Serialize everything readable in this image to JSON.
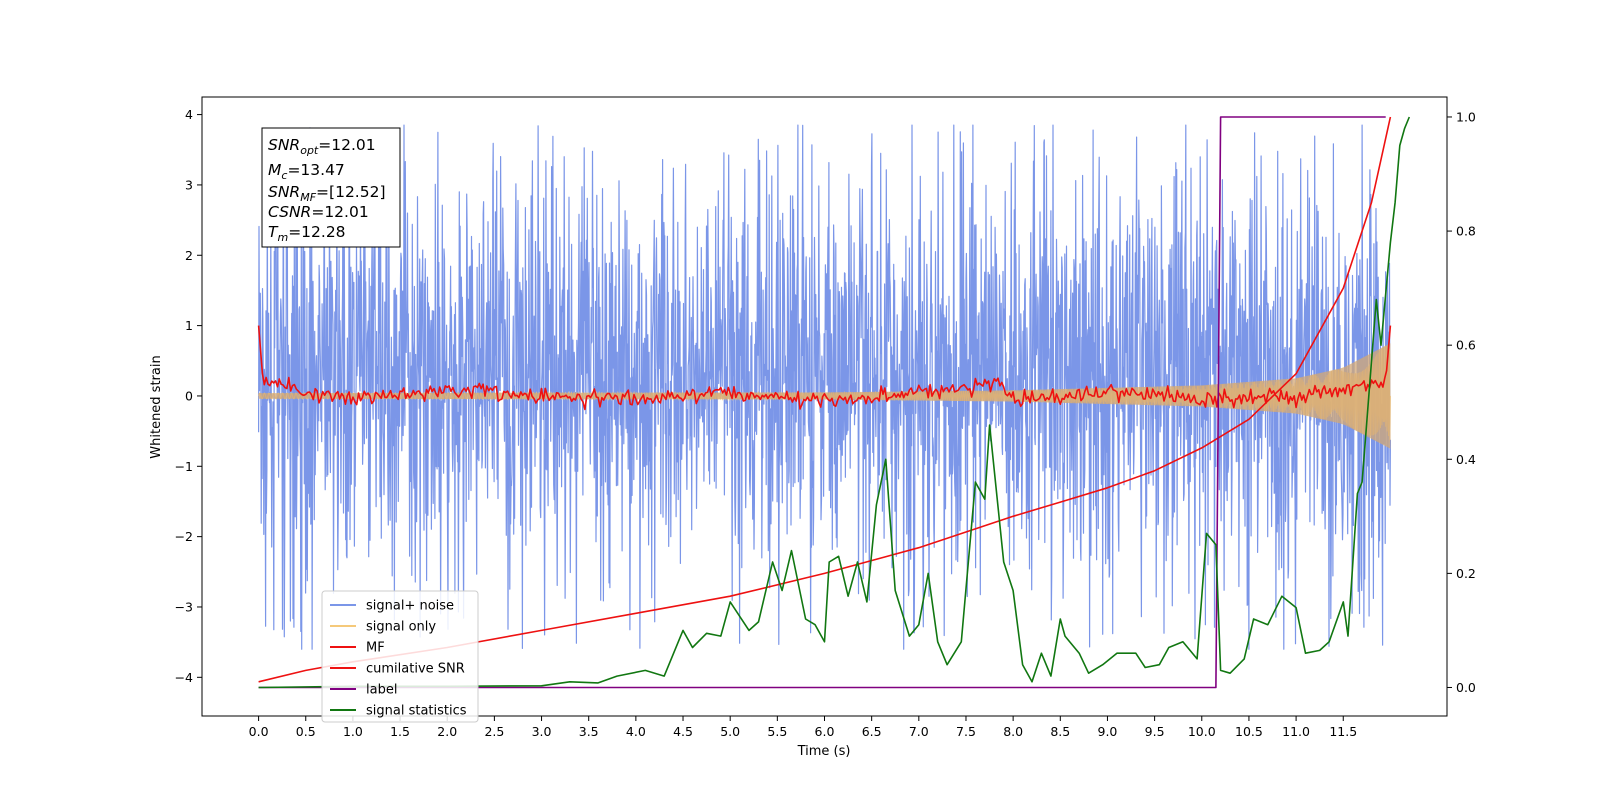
{
  "chart_data": {
    "type": "line",
    "xlabel": "Time (s)",
    "ylabel": "Whitened strain",
    "xlim": [
      -0.6,
      12.6
    ],
    "ylim": [
      -4.55,
      4.25
    ],
    "y2lim": [
      -0.05,
      1.035
    ],
    "xticks": [
      "0.0",
      "0.5",
      "1.0",
      "1.5",
      "2.0",
      "2.5",
      "3.0",
      "3.5",
      "4.0",
      "4.5",
      "5.0",
      "5.5",
      "6.0",
      "6.5",
      "7.0",
      "7.5",
      "8.0",
      "8.5",
      "9.0",
      "9.5",
      "10.0",
      "10.5",
      "11.0",
      "11.5"
    ],
    "yticks": [
      "4",
      "3",
      "2",
      "1",
      "0",
      "−1",
      "−2",
      "−3",
      "−4"
    ],
    "y2ticks": [
      "1.0",
      "0.8",
      "0.6",
      "0.4",
      "0.2",
      "0.0"
    ],
    "info_box": {
      "snr_opt_sym": "SNR",
      "snr_opt_sub": "opt",
      "snr_opt_val": "=12.01",
      "mc_sym": "M",
      "mc_sub": "c",
      "mc_val": "=13.47",
      "snr_mf_sym": "SNR",
      "snr_mf_sub": "MF",
      "snr_mf_val": "=[12.52]",
      "csnr_sym": "CSNR",
      "csnr_val": "=12.01",
      "tm_sym": "T",
      "tm_sub": "m",
      "tm_val": "=12.28"
    },
    "legend": {
      "position": "lower-left",
      "entries": [
        {
          "name": "signal+ noise",
          "color": "#7b96e8"
        },
        {
          "name": "signal only",
          "color": "#f5c97a"
        },
        {
          "name": "MF",
          "color": "#ee1111"
        },
        {
          "name": "cumilative SNR",
          "color": "#ee1111"
        },
        {
          "name": "label",
          "color": "#800080"
        },
        {
          "name": "signal statistics",
          "color": "#117711"
        }
      ]
    },
    "series": [
      {
        "name": "signal+ noise",
        "axis": "left",
        "color": "#7b96e8",
        "t_range": [
          0.0,
          12.0
        ],
        "amplitude_envelope": {
          "t": [
            0.0,
            2.0,
            6.0,
            10.0,
            12.0
          ],
          "upper": [
            2.6,
            2.9,
            2.9,
            2.8,
            2.7
          ],
          "lower": [
            -2.4,
            -2.1,
            -2.2,
            -2.2,
            -2.6
          ]
        },
        "peak_range": [
          -3.6,
          3.85
        ]
      },
      {
        "name": "signal only",
        "axis": "left",
        "color": "#f5c97a",
        "t_range": [
          0.0,
          12.0
        ],
        "amplitude_envelope": {
          "t": [
            0.0,
            6.0,
            8.0,
            10.0,
            11.0,
            11.5,
            12.0
          ],
          "amp": [
            0.04,
            0.05,
            0.08,
            0.15,
            0.25,
            0.4,
            0.75
          ]
        }
      },
      {
        "name": "MF",
        "axis": "left",
        "color": "#ee1111",
        "points": [
          [
            0.0,
            1.0
          ],
          [
            0.05,
            0.15
          ],
          [
            0.1,
            0.2
          ],
          [
            0.5,
            0.05
          ],
          [
            1.0,
            -0.05
          ],
          [
            2.0,
            0.1
          ],
          [
            3.0,
            0.0
          ],
          [
            4.0,
            -0.05
          ],
          [
            5.0,
            0.05
          ],
          [
            6.0,
            -0.05
          ],
          [
            7.0,
            0.05
          ],
          [
            7.8,
            0.2
          ],
          [
            8.0,
            -0.05
          ],
          [
            9.0,
            0.05
          ],
          [
            10.0,
            -0.05
          ],
          [
            11.0,
            0.0
          ],
          [
            11.95,
            0.2
          ],
          [
            12.0,
            1.0
          ]
        ],
        "fluctuation": 0.1
      },
      {
        "name": "cumilative SNR",
        "axis": "right",
        "color": "#ee1111",
        "points": [
          [
            0.0,
            0.01
          ],
          [
            0.5,
            0.03
          ],
          [
            1.0,
            0.045
          ],
          [
            2.0,
            0.07
          ],
          [
            3.0,
            0.1
          ],
          [
            4.0,
            0.13
          ],
          [
            5.0,
            0.16
          ],
          [
            6.0,
            0.2
          ],
          [
            7.0,
            0.245
          ],
          [
            8.0,
            0.3
          ],
          [
            8.5,
            0.325
          ],
          [
            9.0,
            0.35
          ],
          [
            9.5,
            0.38
          ],
          [
            10.0,
            0.42
          ],
          [
            10.5,
            0.47
          ],
          [
            11.0,
            0.55
          ],
          [
            11.5,
            0.7
          ],
          [
            11.8,
            0.85
          ],
          [
            12.0,
            1.0
          ]
        ]
      },
      {
        "name": "label",
        "axis": "right",
        "color": "#800080",
        "points": [
          [
            0.0,
            0.0
          ],
          [
            10.15,
            0.0
          ],
          [
            10.2,
            1.0
          ],
          [
            11.95,
            1.0
          ]
        ]
      },
      {
        "name": "signal statistics",
        "axis": "right",
        "color": "#117711",
        "points": [
          [
            0.0,
            0.0
          ],
          [
            1.0,
            0.002
          ],
          [
            2.0,
            0.002
          ],
          [
            3.0,
            0.003
          ],
          [
            3.3,
            0.01
          ],
          [
            3.6,
            0.008
          ],
          [
            3.8,
            0.02
          ],
          [
            4.1,
            0.03
          ],
          [
            4.3,
            0.02
          ],
          [
            4.5,
            0.1
          ],
          [
            4.6,
            0.07
          ],
          [
            4.75,
            0.095
          ],
          [
            4.9,
            0.09
          ],
          [
            5.0,
            0.15
          ],
          [
            5.2,
            0.1
          ],
          [
            5.3,
            0.115
          ],
          [
            5.45,
            0.22
          ],
          [
            5.55,
            0.17
          ],
          [
            5.65,
            0.24
          ],
          [
            5.8,
            0.12
          ],
          [
            5.9,
            0.11
          ],
          [
            6.0,
            0.08
          ],
          [
            6.05,
            0.22
          ],
          [
            6.15,
            0.23
          ],
          [
            6.25,
            0.16
          ],
          [
            6.35,
            0.22
          ],
          [
            6.45,
            0.15
          ],
          [
            6.55,
            0.32
          ],
          [
            6.65,
            0.4
          ],
          [
            6.75,
            0.17
          ],
          [
            6.9,
            0.09
          ],
          [
            7.0,
            0.11
          ],
          [
            7.1,
            0.2
          ],
          [
            7.2,
            0.08
          ],
          [
            7.3,
            0.04
          ],
          [
            7.45,
            0.08
          ],
          [
            7.6,
            0.36
          ],
          [
            7.7,
            0.33
          ],
          [
            7.75,
            0.46
          ],
          [
            7.9,
            0.22
          ],
          [
            8.0,
            0.17
          ],
          [
            8.1,
            0.04
          ],
          [
            8.2,
            0.01
          ],
          [
            8.3,
            0.06
          ],
          [
            8.4,
            0.02
          ],
          [
            8.5,
            0.12
          ],
          [
            8.55,
            0.09
          ],
          [
            8.7,
            0.06
          ],
          [
            8.8,
            0.025
          ],
          [
            8.95,
            0.04
          ],
          [
            9.1,
            0.06
          ],
          [
            9.3,
            0.06
          ],
          [
            9.4,
            0.035
          ],
          [
            9.55,
            0.04
          ],
          [
            9.65,
            0.07
          ],
          [
            9.8,
            0.08
          ],
          [
            9.95,
            0.05
          ],
          [
            10.05,
            0.27
          ],
          [
            10.15,
            0.25
          ],
          [
            10.2,
            0.03
          ],
          [
            10.3,
            0.025
          ],
          [
            10.45,
            0.05
          ],
          [
            10.55,
            0.12
          ],
          [
            10.7,
            0.11
          ],
          [
            10.85,
            0.16
          ],
          [
            11.0,
            0.14
          ],
          [
            11.1,
            0.06
          ],
          [
            11.25,
            0.065
          ],
          [
            11.35,
            0.08
          ],
          [
            11.5,
            0.15
          ],
          [
            11.55,
            0.09
          ],
          [
            11.65,
            0.34
          ],
          [
            11.7,
            0.36
          ],
          [
            11.85,
            0.68
          ],
          [
            11.9,
            0.6
          ],
          [
            12.0,
            0.78
          ],
          [
            12.05,
            0.85
          ],
          [
            12.1,
            0.95
          ],
          [
            12.15,
            0.98
          ],
          [
            12.2,
            1.0
          ]
        ]
      }
    ]
  }
}
